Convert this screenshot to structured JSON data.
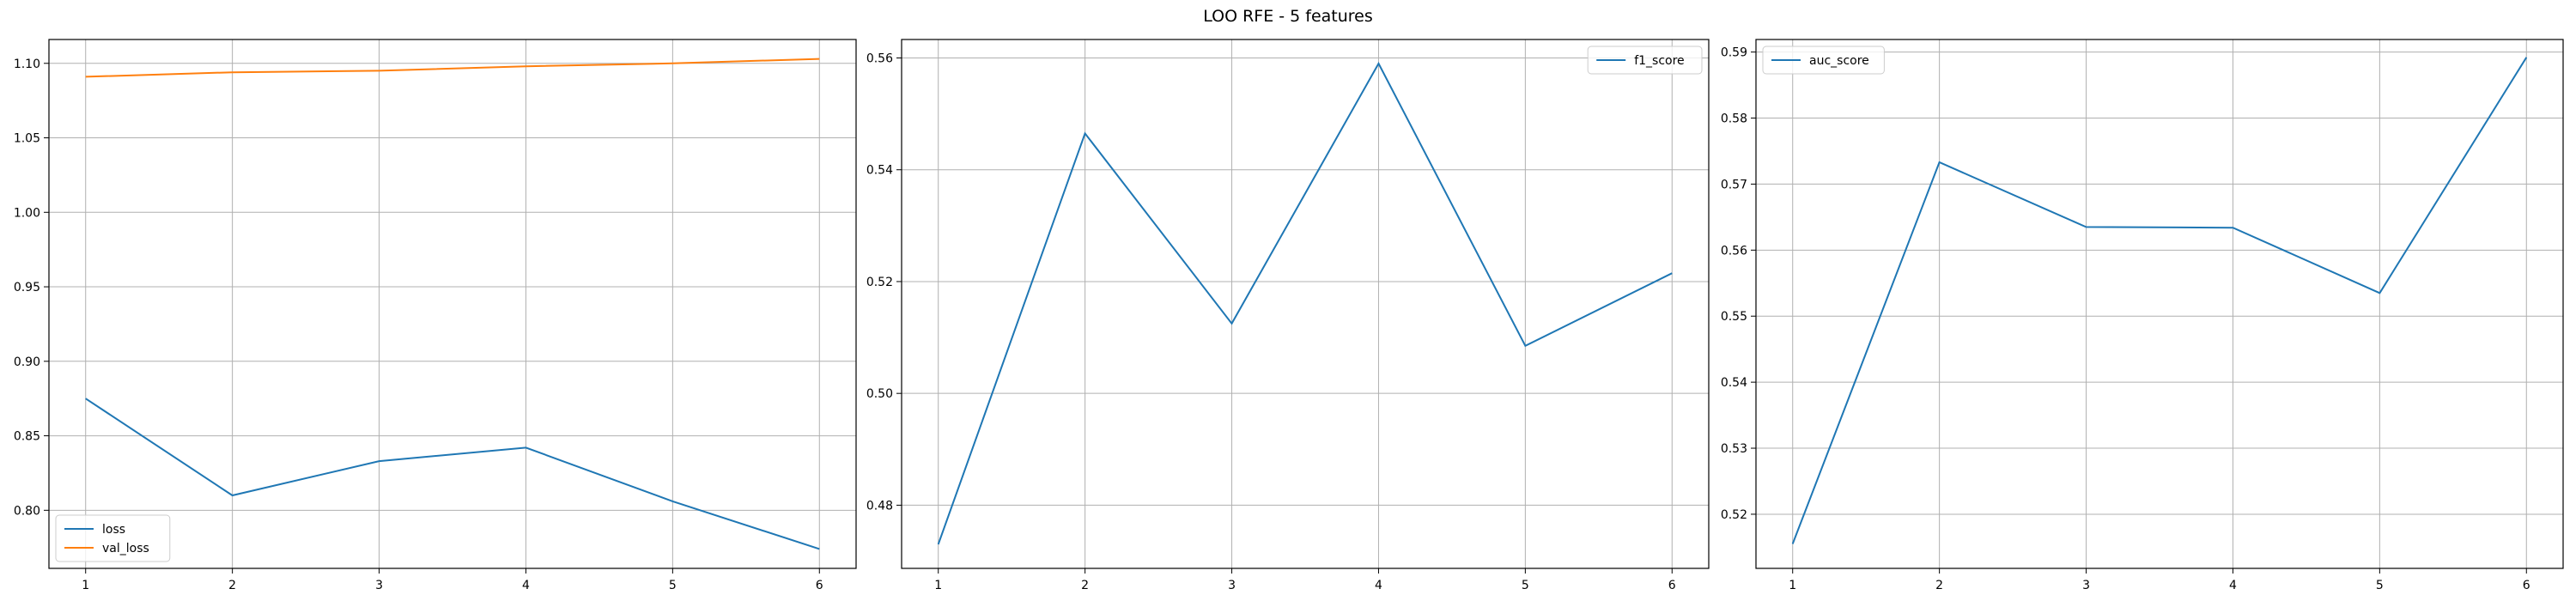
{
  "figure": {
    "title": "LOO RFE - 5 features"
  },
  "chart_data": [
    {
      "type": "line",
      "x": [
        1,
        2,
        3,
        4,
        5,
        6
      ],
      "series": [
        {
          "name": "loss",
          "color": "#1f77b4",
          "values": [
            0.875,
            0.81,
            0.833,
            0.842,
            0.806,
            0.774
          ]
        },
        {
          "name": "val_loss",
          "color": "#ff7f0e",
          "values": [
            1.091,
            1.094,
            1.095,
            1.098,
            1.1,
            1.103
          ]
        }
      ],
      "xticks": [
        1,
        2,
        3,
        4,
        5,
        6
      ],
      "yticks": [
        "0.80",
        "0.85",
        "0.90",
        "0.95",
        "1.00",
        "1.05",
        "1.10"
      ],
      "ylim": [
        0.761,
        1.116
      ],
      "xlim": [
        0.75,
        6.25
      ],
      "grid": true,
      "legend": "lower-left"
    },
    {
      "type": "line",
      "x": [
        1,
        2,
        3,
        4,
        5,
        6
      ],
      "series": [
        {
          "name": "f1_score",
          "color": "#1f77b4",
          "values": [
            0.473,
            0.5465,
            0.5125,
            0.559,
            0.5085,
            0.5215
          ]
        }
      ],
      "xticks": [
        1,
        2,
        3,
        4,
        5,
        6
      ],
      "yticks": [
        "0.48",
        "0.50",
        "0.52",
        "0.54",
        "0.56"
      ],
      "ylim": [
        0.4687,
        0.5633
      ],
      "xlim": [
        0.75,
        6.25
      ],
      "grid": true,
      "legend": "upper-right"
    },
    {
      "type": "line",
      "x": [
        1,
        2,
        3,
        4,
        5,
        6
      ],
      "series": [
        {
          "name": "auc_score",
          "color": "#1f77b4",
          "values": [
            0.5155,
            0.5733,
            0.5635,
            0.5634,
            0.5535,
            0.5892
          ]
        }
      ],
      "xticks": [
        1,
        2,
        3,
        4,
        5,
        6
      ],
      "yticks": [
        "0.52",
        "0.53",
        "0.54",
        "0.55",
        "0.56",
        "0.57",
        "0.58",
        "0.59"
      ],
      "ylim": [
        0.5118,
        0.5919
      ],
      "xlim": [
        0.75,
        6.25
      ],
      "grid": true,
      "legend": "upper-left"
    }
  ]
}
